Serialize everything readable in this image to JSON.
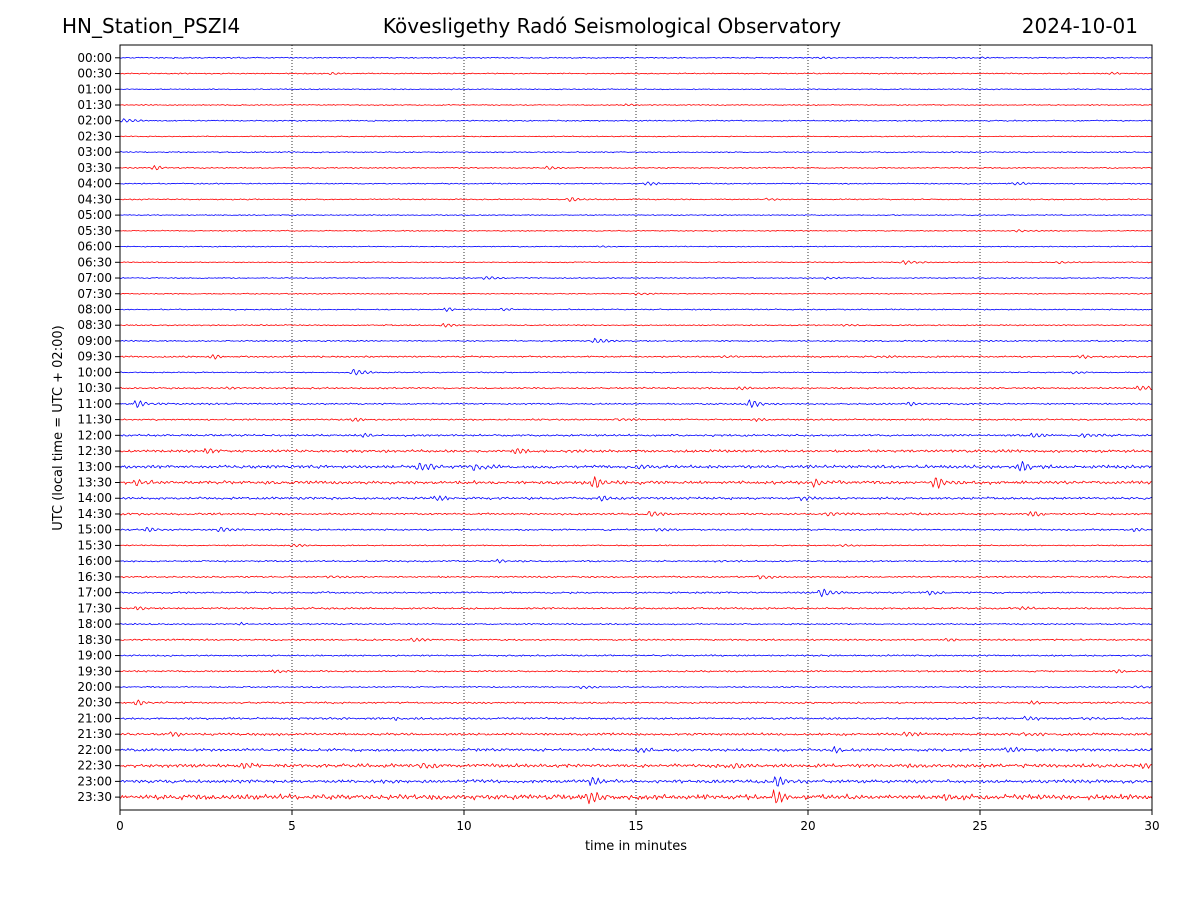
{
  "header": {
    "station": "HN_Station_PSZI4",
    "observatory": "Kövesligethy Radó Seismological Observatory",
    "date": "2024-10-01"
  },
  "chart_data": {
    "type": "line",
    "title": "Kövesligethy Radó Seismological Observatory",
    "xlabel": "time in minutes",
    "ylabel": "UTC (local time = UTC + 02:00)",
    "xlim": [
      0,
      30
    ],
    "x_ticks": [
      0,
      5,
      10,
      15,
      20,
      25,
      30
    ],
    "x_tick_labels": [
      "0",
      "5",
      "10",
      "15",
      "20",
      "25",
      "30"
    ],
    "grid": "vertical dotted at x ticks",
    "trace_colors": [
      "#0000ff",
      "#ff0000"
    ],
    "traces": [
      {
        "label": "00:00",
        "color": "#0000ff",
        "amp": 0.6,
        "events": [
          [
            20.3,
            1.2
          ],
          [
            25.0,
            0.8
          ]
        ]
      },
      {
        "label": "00:30",
        "color": "#ff0000",
        "amp": 0.6,
        "events": [
          [
            6.1,
            1.3
          ],
          [
            28.8,
            1.0
          ]
        ]
      },
      {
        "label": "01:00",
        "color": "#0000ff",
        "amp": 0.5,
        "events": []
      },
      {
        "label": "01:30",
        "color": "#ff0000",
        "amp": 0.5,
        "events": [
          [
            14.7,
            0.9
          ]
        ]
      },
      {
        "label": "02:00",
        "color": "#0000ff",
        "amp": 0.6,
        "events": [
          [
            0.1,
            2.5
          ]
        ]
      },
      {
        "label": "02:30",
        "color": "#ff0000",
        "amp": 0.5,
        "events": []
      },
      {
        "label": "03:00",
        "color": "#0000ff",
        "amp": 0.6,
        "events": []
      },
      {
        "label": "03:30",
        "color": "#ff0000",
        "amp": 0.6,
        "events": [
          [
            1.0,
            2.2
          ],
          [
            12.4,
            1.8
          ]
        ]
      },
      {
        "label": "04:00",
        "color": "#0000ff",
        "amp": 0.6,
        "events": [
          [
            15.3,
            2.0
          ],
          [
            26.0,
            1.8
          ]
        ]
      },
      {
        "label": "04:30",
        "color": "#ff0000",
        "amp": 0.6,
        "events": [
          [
            13.1,
            2.3
          ],
          [
            18.8,
            1.3
          ]
        ]
      },
      {
        "label": "05:00",
        "color": "#0000ff",
        "amp": 0.5,
        "events": []
      },
      {
        "label": "05:30",
        "color": "#ff0000",
        "amp": 0.5,
        "events": [
          [
            26.1,
            1.5
          ]
        ]
      },
      {
        "label": "06:00",
        "color": "#0000ff",
        "amp": 0.5,
        "events": [
          [
            13.9,
            1.0
          ]
        ]
      },
      {
        "label": "06:30",
        "color": "#ff0000",
        "amp": 0.5,
        "events": [
          [
            22.8,
            2.5
          ],
          [
            27.3,
            1.5
          ]
        ]
      },
      {
        "label": "07:00",
        "color": "#0000ff",
        "amp": 0.5,
        "events": [
          [
            10.6,
            2.0
          ],
          [
            20.5,
            1.3
          ]
        ]
      },
      {
        "label": "07:30",
        "color": "#ff0000",
        "amp": 0.5,
        "events": [
          [
            15.0,
            1.6
          ]
        ]
      },
      {
        "label": "08:00",
        "color": "#0000ff",
        "amp": 0.6,
        "events": [
          [
            9.5,
            1.6
          ],
          [
            11.1,
            1.2
          ]
        ]
      },
      {
        "label": "08:30",
        "color": "#ff0000",
        "amp": 0.6,
        "events": [
          [
            9.4,
            2.0
          ],
          [
            21.0,
            1.2
          ]
        ]
      },
      {
        "label": "09:00",
        "color": "#0000ff",
        "amp": 0.7,
        "events": [
          [
            13.8,
            3.2
          ]
        ]
      },
      {
        "label": "09:30",
        "color": "#ff0000",
        "amp": 0.8,
        "events": [
          [
            2.7,
            2.2
          ],
          [
            17.5,
            1.5
          ],
          [
            22.0,
            1.4
          ],
          [
            28.0,
            2.0
          ]
        ]
      },
      {
        "label": "10:00",
        "color": "#0000ff",
        "amp": 0.6,
        "events": [
          [
            6.8,
            3.5
          ],
          [
            27.7,
            1.2
          ]
        ]
      },
      {
        "label": "10:30",
        "color": "#ff0000",
        "amp": 0.8,
        "events": [
          [
            3.2,
            1.6
          ],
          [
            18.0,
            1.6
          ],
          [
            29.6,
            3.0
          ]
        ]
      },
      {
        "label": "11:00",
        "color": "#0000ff",
        "amp": 0.8,
        "events": [
          [
            0.5,
            4.0
          ],
          [
            18.3,
            4.2
          ],
          [
            23.0,
            2.2
          ]
        ]
      },
      {
        "label": "11:30",
        "color": "#ff0000",
        "amp": 0.8,
        "events": [
          [
            6.8,
            1.8
          ],
          [
            14.5,
            1.5
          ],
          [
            18.5,
            1.5
          ]
        ]
      },
      {
        "label": "12:00",
        "color": "#0000ff",
        "amp": 1.0,
        "events": [
          [
            7.1,
            2.0
          ],
          [
            26.5,
            2.5
          ],
          [
            28.0,
            2.5
          ]
        ]
      },
      {
        "label": "12:30",
        "color": "#ff0000",
        "amp": 1.3,
        "events": [
          [
            2.5,
            2.2
          ],
          [
            11.5,
            3.0
          ],
          [
            13.0,
            2.0
          ]
        ]
      },
      {
        "label": "13:00",
        "color": "#0000ff",
        "amp": 1.6,
        "events": [
          [
            8.7,
            5.2
          ],
          [
            10.3,
            4.5
          ],
          [
            15.0,
            2.5
          ],
          [
            26.2,
            4.8
          ]
        ]
      },
      {
        "label": "13:30",
        "color": "#ff0000",
        "amp": 1.6,
        "events": [
          [
            0.5,
            4.2
          ],
          [
            13.8,
            5.8
          ],
          [
            20.2,
            4.0
          ],
          [
            23.7,
            6.0
          ]
        ]
      },
      {
        "label": "14:00",
        "color": "#0000ff",
        "amp": 1.2,
        "events": [
          [
            9.2,
            2.5
          ],
          [
            14.0,
            3.0
          ],
          [
            19.8,
            2.5
          ]
        ]
      },
      {
        "label": "14:30",
        "color": "#ff0000",
        "amp": 1.0,
        "events": [
          [
            15.4,
            3.2
          ],
          [
            20.6,
            2.8
          ],
          [
            26.5,
            2.5
          ]
        ]
      },
      {
        "label": "15:00",
        "color": "#0000ff",
        "amp": 0.8,
        "events": [
          [
            0.8,
            2.5
          ],
          [
            2.9,
            3.0
          ],
          [
            15.6,
            1.8
          ],
          [
            29.5,
            2.0
          ]
        ]
      },
      {
        "label": "15:30",
        "color": "#ff0000",
        "amp": 0.6,
        "events": [
          [
            5.0,
            1.8
          ],
          [
            21.0,
            1.6
          ]
        ]
      },
      {
        "label": "16:00",
        "color": "#0000ff",
        "amp": 0.8,
        "events": [
          [
            11.0,
            2.0
          ],
          [
            17.5,
            1.4
          ]
        ]
      },
      {
        "label": "16:30",
        "color": "#ff0000",
        "amp": 0.8,
        "events": [
          [
            6.0,
            1.8
          ],
          [
            18.6,
            2.5
          ]
        ]
      },
      {
        "label": "17:00",
        "color": "#0000ff",
        "amp": 0.9,
        "events": [
          [
            20.4,
            4.5
          ],
          [
            23.5,
            2.0
          ]
        ]
      },
      {
        "label": "17:30",
        "color": "#ff0000",
        "amp": 0.9,
        "events": [
          [
            0.5,
            1.6
          ],
          [
            26.2,
            2.0
          ]
        ]
      },
      {
        "label": "18:00",
        "color": "#0000ff",
        "amp": 0.7,
        "events": [
          [
            3.5,
            1.4
          ]
        ]
      },
      {
        "label": "18:30",
        "color": "#ff0000",
        "amp": 0.8,
        "events": [
          [
            8.5,
            2.5
          ],
          [
            24.0,
            1.4
          ]
        ]
      },
      {
        "label": "19:00",
        "color": "#0000ff",
        "amp": 0.8,
        "events": []
      },
      {
        "label": "19:30",
        "color": "#ff0000",
        "amp": 0.8,
        "events": [
          [
            4.5,
            1.6
          ],
          [
            29.0,
            1.6
          ]
        ]
      },
      {
        "label": "20:00",
        "color": "#0000ff",
        "amp": 0.7,
        "events": [
          [
            13.4,
            2.0
          ],
          [
            29.5,
            1.4
          ]
        ]
      },
      {
        "label": "20:30",
        "color": "#ff0000",
        "amp": 0.9,
        "events": [
          [
            0.5,
            2.5
          ],
          [
            26.5,
            1.8
          ]
        ]
      },
      {
        "label": "21:00",
        "color": "#0000ff",
        "amp": 1.0,
        "events": [
          [
            8.0,
            1.8
          ],
          [
            26.3,
            2.2
          ],
          [
            28.0,
            1.8
          ]
        ]
      },
      {
        "label": "21:30",
        "color": "#ff0000",
        "amp": 1.2,
        "events": [
          [
            1.5,
            2.2
          ],
          [
            22.8,
            2.8
          ],
          [
            26.3,
            2.5
          ]
        ]
      },
      {
        "label": "22:00",
        "color": "#0000ff",
        "amp": 1.4,
        "events": [
          [
            15.0,
            2.5
          ],
          [
            20.8,
            2.8
          ],
          [
            25.8,
            3.0
          ]
        ]
      },
      {
        "label": "22:30",
        "color": "#ff0000",
        "amp": 1.8,
        "events": [
          [
            3.5,
            3.0
          ],
          [
            8.7,
            3.5
          ],
          [
            17.8,
            2.8
          ],
          [
            29.8,
            3.0
          ]
        ]
      },
      {
        "label": "23:00",
        "color": "#0000ff",
        "amp": 1.6,
        "events": [
          [
            13.7,
            4.2
          ],
          [
            19.1,
            5.0
          ]
        ]
      },
      {
        "label": "23:30",
        "color": "#ff0000",
        "amp": 2.5,
        "events": [
          [
            13.6,
            6.2
          ],
          [
            19.0,
            6.5
          ],
          [
            24.0,
            4.0
          ]
        ]
      }
    ]
  }
}
